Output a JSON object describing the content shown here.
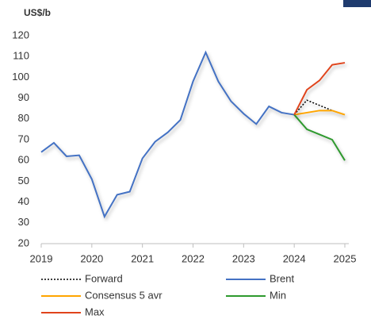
{
  "chart_data": {
    "type": "line",
    "y_unit_label": "US$/b",
    "xlim": [
      2019,
      2025
    ],
    "xticks": [
      2019,
      2020,
      2021,
      2022,
      2023,
      2024,
      2025
    ],
    "ylim": [
      20,
      120
    ],
    "yticks": [
      20,
      30,
      40,
      50,
      60,
      70,
      80,
      90,
      100,
      110,
      120
    ],
    "grid": false,
    "series": [
      {
        "name": "Forward",
        "color": "#000000",
        "dash": "dotted",
        "x": [
          2024,
          2024.25,
          2024.5,
          2024.75,
          2025
        ],
        "values": [
          82,
          89,
          86.5,
          84,
          82
        ]
      },
      {
        "name": "Brent",
        "color": "#4472c4",
        "dash": "solid",
        "x": [
          2019,
          2019.25,
          2019.5,
          2019.75,
          2020,
          2020.25,
          2020.5,
          2020.75,
          2021,
          2021.25,
          2021.5,
          2021.75,
          2022,
          2022.25,
          2022.5,
          2022.75,
          2023,
          2023.25,
          2023.5,
          2023.75,
          2024
        ],
        "values": [
          64,
          68.5,
          62,
          62.5,
          51,
          33,
          43.5,
          45,
          61,
          69,
          73.5,
          79.5,
          98,
          112,
          98,
          88.5,
          82.5,
          77.5,
          86,
          83,
          82
        ]
      },
      {
        "name": "Consensus 5 avr",
        "color": "#ffa500",
        "dash": "solid",
        "x": [
          2024,
          2024.25,
          2024.5,
          2024.75,
          2025
        ],
        "values": [
          82,
          83,
          84,
          84,
          82
        ]
      },
      {
        "name": "Min",
        "color": "#2e9a2e",
        "dash": "solid",
        "x": [
          2024,
          2024.25,
          2024.5,
          2024.75,
          2025
        ],
        "values": [
          82,
          75,
          72.5,
          70,
          60
        ]
      },
      {
        "name": "Max",
        "color": "#e0441c",
        "dash": "solid",
        "x": [
          2024,
          2024.25,
          2024.5,
          2024.75,
          2025
        ],
        "values": [
          82,
          94,
          98.5,
          106,
          107
        ]
      }
    ]
  }
}
